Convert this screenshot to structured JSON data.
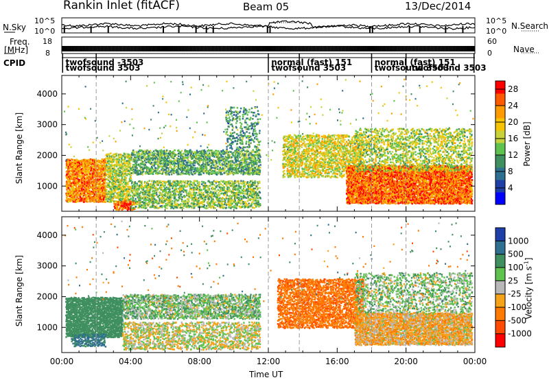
{
  "header": {
    "station": "Rankin Inlet (fitACF)",
    "beam": "Beam 05",
    "date": "13/Dec/2014"
  },
  "side_labels": {
    "nsky": "N.Sky",
    "nsearch": "N.Search",
    "freq_line1": "Freq.",
    "freq_line2": "[MHz]",
    "nave": "Nave",
    "cpid": "CPID"
  },
  "noise_axis": {
    "left_top": "10^5",
    "left_bottom": "10^0",
    "right_top": "10^5",
    "right_bottom": "10^0"
  },
  "freq_axis": {
    "left_top": "18",
    "left_bottom": "8",
    "right_top": "60",
    "right_bottom": "0"
  },
  "cpid_labels": [
    {
      "text": "twofsound -3503",
      "row": 0,
      "hour": 0.1
    },
    {
      "text": "twofsound 3503",
      "row": 1,
      "hour": 0.1
    },
    {
      "text": "normal (fast) 151",
      "row": 0,
      "hour": 12.05
    },
    {
      "text": "twofsound 3503",
      "row": 1,
      "hour": 12.05
    },
    {
      "text": "normal (fast) 151",
      "row": 0,
      "hour": 18.05
    },
    {
      "text": "twofsound 3503",
      "row": 1,
      "hour": 18.05
    },
    {
      "text": "twofsound 3503",
      "row": 1,
      "hour": 20.2
    }
  ],
  "colors": {
    "power": [
      "#0000ff",
      "#1f3fa8",
      "#2f6f8f",
      "#3f8f5f",
      "#5fc24f",
      "#c8d23a",
      "#f6c400",
      "#ff9a00",
      "#ff5a00",
      "#ff0000"
    ],
    "velocity": [
      "#1f3fa8",
      "#2f6f8f",
      "#3f8f5f",
      "#5fc24f",
      "#b8b8b8",
      "#f6a31a",
      "#ff7a00",
      "#ff4a00",
      "#ff0000"
    ]
  },
  "chart_data": [
    {
      "type": "heatmap",
      "panel": "power",
      "ylabel": "Slant Range [km]",
      "xlabel": "Time UT",
      "x_range_hours": [
        0,
        24
      ],
      "x_ticks": [
        "00:00",
        "04:00",
        "08:00",
        "12:00",
        "16:00",
        "20:00",
        "00:00"
      ],
      "ylim": [
        180,
        4600
      ],
      "y_ticks": [
        1000,
        2000,
        3000,
        4000
      ],
      "colorbar_label": "Power [dB]",
      "colorbar_ticks": [
        4,
        8,
        12,
        16,
        20,
        24,
        28
      ],
      "colorbar_range": [
        0,
        30
      ],
      "echo_regions": [
        {
          "h0": 0.2,
          "h1": 2.5,
          "r0": 500,
          "r1": 1900,
          "value": 24,
          "density": 0.85
        },
        {
          "h0": 2.5,
          "h1": 4.0,
          "r0": 500,
          "r1": 2100,
          "value": 16,
          "density": 0.6
        },
        {
          "h0": 3.0,
          "h1": 4.2,
          "r0": 250,
          "r1": 550,
          "value": 26,
          "density": 0.8
        },
        {
          "h0": 4.0,
          "h1": 11.5,
          "r0": 1400,
          "r1": 2200,
          "value": 12,
          "density": 0.55
        },
        {
          "h0": 4.0,
          "h1": 11.5,
          "r0": 300,
          "r1": 1200,
          "value": 14,
          "density": 0.5
        },
        {
          "h0": 9.5,
          "h1": 11.5,
          "r0": 2200,
          "r1": 3600,
          "value": 10,
          "density": 0.25
        },
        {
          "h0": 12.8,
          "h1": 17.5,
          "r0": 1300,
          "r1": 2700,
          "value": 18,
          "density": 0.5
        },
        {
          "h0": 16.5,
          "h1": 23.8,
          "r0": 450,
          "r1": 1700,
          "value": 26,
          "density": 0.9
        },
        {
          "h0": 17.0,
          "h1": 23.8,
          "r0": 1500,
          "r1": 2900,
          "value": 16,
          "density": 0.35
        }
      ]
    },
    {
      "type": "heatmap",
      "panel": "velocity",
      "ylabel": "Slant Range [km]",
      "xlabel": "Time UT",
      "x_range_hours": [
        0,
        24
      ],
      "x_ticks": [
        "00:00",
        "04:00",
        "08:00",
        "12:00",
        "16:00",
        "20:00",
        "00:00"
      ],
      "ylim": [
        180,
        4600
      ],
      "y_ticks": [
        1000,
        2000,
        3000,
        4000
      ],
      "colorbar_label": "Velocity [m s^-1]",
      "colorbar_ticks": [
        "1000",
        "500",
        "100",
        "25",
        "-25",
        "-100",
        "-500",
        "-1000"
      ],
      "echo_regions": [
        {
          "h0": 0.2,
          "h1": 3.5,
          "r0": 700,
          "r1": 2000,
          "value": 250,
          "density": 0.85
        },
        {
          "h0": 0.5,
          "h1": 2.5,
          "r0": 400,
          "r1": 800,
          "value": 600,
          "density": 0.6
        },
        {
          "h0": 3.5,
          "h1": 11.5,
          "r0": 1300,
          "r1": 2100,
          "value": 60,
          "density": 0.55
        },
        {
          "h0": 3.5,
          "h1": 11.5,
          "r0": 300,
          "r1": 1200,
          "value": 0,
          "density": 0.45
        },
        {
          "h0": 12.5,
          "h1": 17.5,
          "r0": 1000,
          "r1": 2600,
          "value": -400,
          "density": 0.6
        },
        {
          "h0": 17.0,
          "h1": 23.8,
          "r0": 450,
          "r1": 1500,
          "value": -60,
          "density": 0.85
        },
        {
          "h0": 17.0,
          "h1": 23.8,
          "r0": 1500,
          "r1": 2800,
          "value": 50,
          "density": 0.3
        }
      ]
    }
  ],
  "velocity_key_tick_unit": "[m s",
  "velocity_key_tick_exp": "-1",
  "velocity_key_tick_word": "Velocity",
  "velocity_key_tick_close": "]",
  "mode_change_hours": [
    2.0,
    12.0,
    13.8,
    18.0,
    20.0
  ]
}
